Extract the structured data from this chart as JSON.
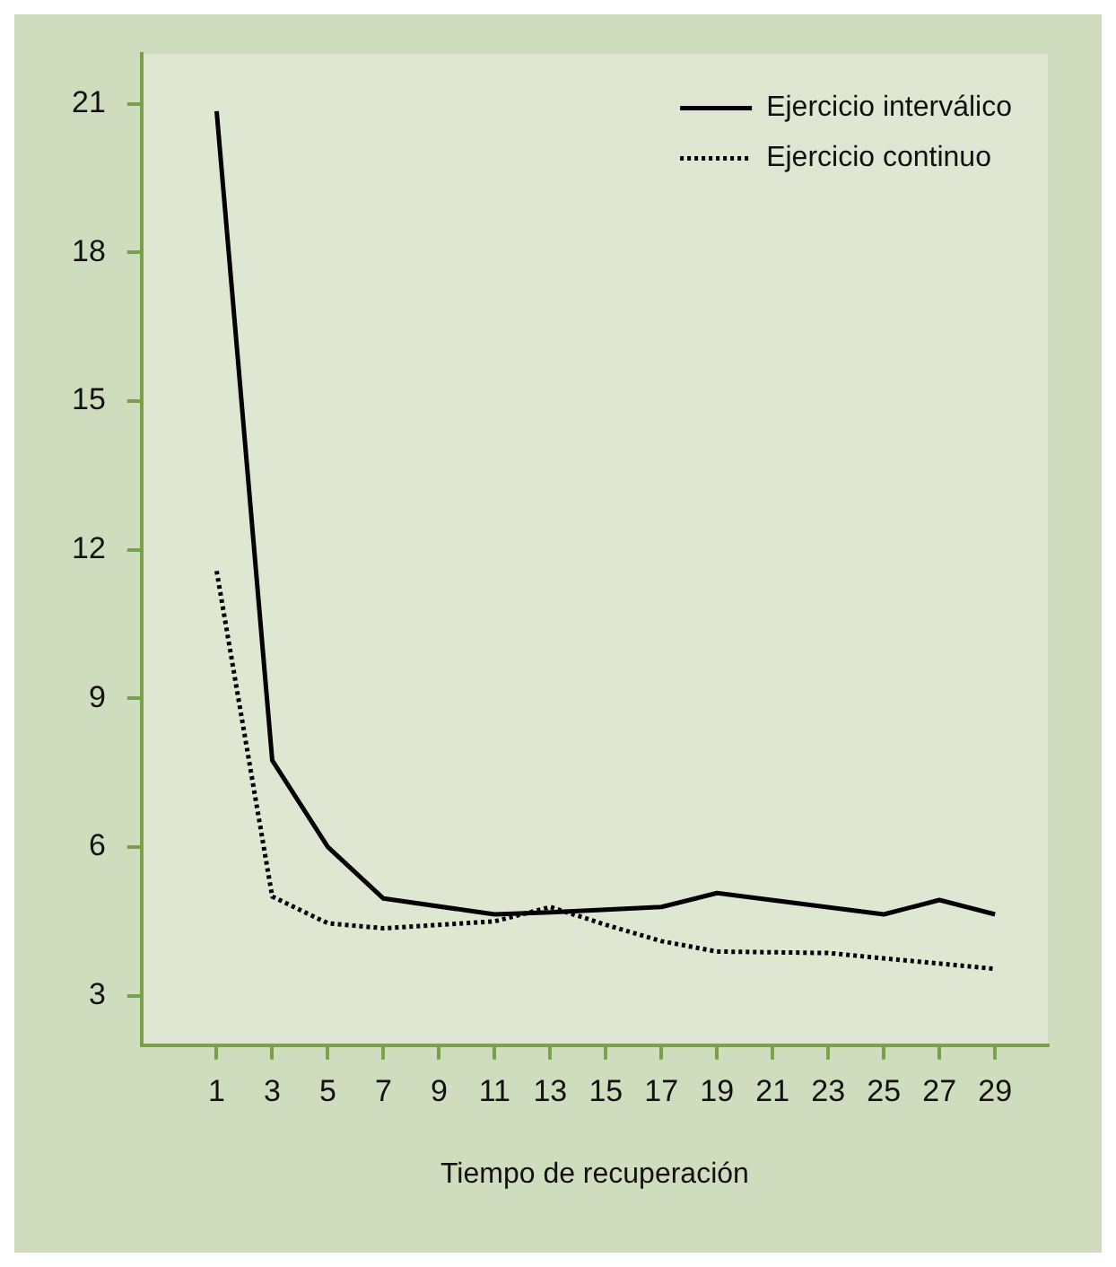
{
  "chart_data": {
    "type": "line",
    "xlabel": "Tiempo de recuperación",
    "xlim": [
      -1.7,
      30.9
    ],
    "xticks": [
      1,
      3,
      5,
      7,
      9,
      11,
      13,
      15,
      17,
      19,
      21,
      23,
      25,
      27,
      29
    ],
    "ylim": [
      2,
      22
    ],
    "yticks": [
      3,
      6,
      9,
      12,
      15,
      18,
      21
    ],
    "grid": false,
    "legend": "top right",
    "marker": "none",
    "series": [
      {
        "name": "Ejercicio interválico",
        "color": "#000000",
        "line_style": "solid",
        "x": [
          1,
          3,
          5,
          7,
          11,
          13,
          17,
          19,
          25,
          27,
          29
        ],
        "values": [
          20.85,
          7.75,
          6.0,
          4.96,
          4.64,
          4.68,
          4.79,
          5.07,
          4.64,
          4.93,
          4.64
        ]
      },
      {
        "name": "Ejercicio continuo",
        "color": "#000000",
        "line_style": "dotted",
        "x": [
          1,
          3,
          5,
          7,
          11,
          13,
          15,
          17,
          19,
          23,
          29
        ],
        "values": [
          11.57,
          5.0,
          4.46,
          4.36,
          4.5,
          4.79,
          4.43,
          4.1,
          3.89,
          3.86,
          3.54
        ]
      }
    ]
  }
}
